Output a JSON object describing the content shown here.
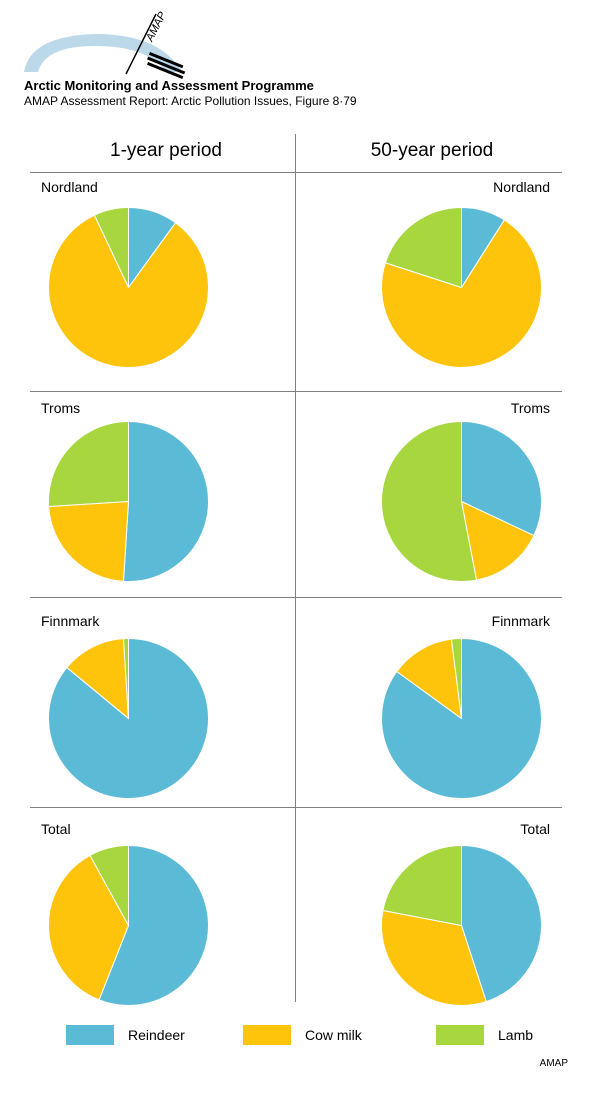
{
  "header": {
    "logo_text": "AMAP",
    "org_title": "Arctic Monitoring and Assessment Programme",
    "report_line": "AMAP Assessment Report: Arctic Pollution Issues, Figure 8·79"
  },
  "columns": [
    "1-year period",
    "50-year period"
  ],
  "colors": {
    "Reindeer": "#5bbad5",
    "Cow milk": "#fec40b",
    "Lamb": "#a7d63f"
  },
  "legend": [
    {
      "label": "Reindeer",
      "color": "#5bbad5"
    },
    {
      "label": "Cow milk",
      "color": "#fec40b"
    },
    {
      "label": "Lamb",
      "color": "#a7d63f"
    }
  ],
  "footer": "AMAP",
  "chart_data": {
    "type": "pie",
    "series_names": [
      "Reindeer",
      "Cow milk",
      "Lamb"
    ],
    "panels": [
      {
        "region": "Nordland",
        "period": "1-year period",
        "values": [
          10,
          83,
          7
        ]
      },
      {
        "region": "Nordland",
        "period": "50-year period",
        "values": [
          9,
          71,
          20
        ]
      },
      {
        "region": "Troms",
        "period": "1-year period",
        "values": [
          51,
          23,
          26
        ]
      },
      {
        "region": "Troms",
        "period": "50-year period",
        "values": [
          32,
          15,
          53
        ]
      },
      {
        "region": "Finnmark",
        "period": "1-year period",
        "values": [
          86,
          13,
          1
        ]
      },
      {
        "region": "Finnmark",
        "period": "50-year period",
        "values": [
          85,
          13,
          2
        ]
      },
      {
        "region": "Total",
        "period": "1-year period",
        "values": [
          56,
          36,
          8
        ]
      },
      {
        "region": "Total",
        "period": "50-year period",
        "values": [
          45,
          33,
          22
        ]
      }
    ]
  }
}
